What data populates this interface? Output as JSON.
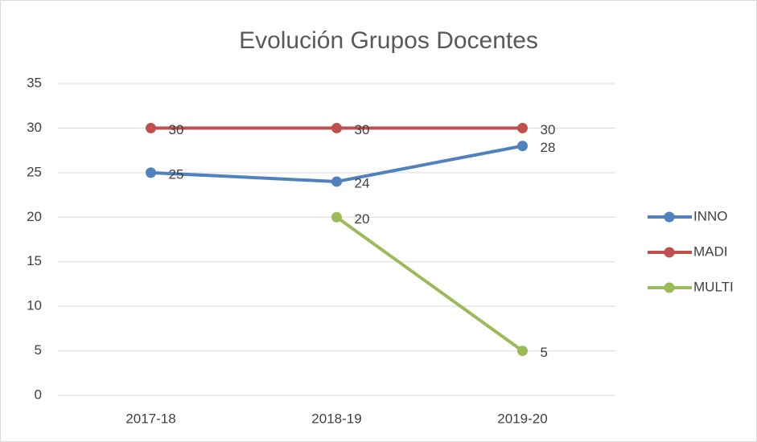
{
  "chart_data": {
    "type": "line",
    "title": "Evolución Grupos Docentes",
    "categories": [
      "2017-18",
      "2018-19",
      "2019-20"
    ],
    "series": [
      {
        "name": "INNO",
        "color": "#4f81bd",
        "values": [
          25,
          24,
          28
        ]
      },
      {
        "name": "MADI",
        "color": "#c0504d",
        "values": [
          30,
          30,
          30
        ]
      },
      {
        "name": "MULTI",
        "color": "#9bbb59",
        "values": [
          null,
          20,
          5
        ]
      }
    ],
    "ylim": [
      0,
      35
    ],
    "yticks": [
      0,
      5,
      10,
      15,
      20,
      25,
      30,
      35
    ],
    "grid": true,
    "legend": "right"
  }
}
